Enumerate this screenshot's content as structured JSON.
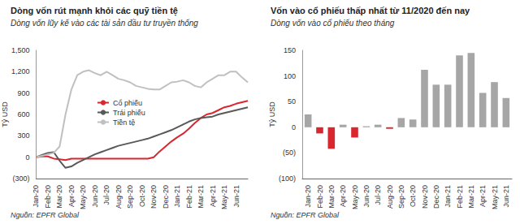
{
  "chart_data": [
    {
      "type": "line",
      "title": "Dòng vốn rút mạnh khỏi các quỹ tiền tệ",
      "subtitle": "Dòng vốn lũy kế vào các tài sản đầu tư truyền thống",
      "ylabel": "Tỷ USD",
      "source": "Nguồn: EPFR Global",
      "categories": [
        "Jan-20",
        null,
        "Feb-20",
        null,
        "Mar-20",
        null,
        "Apr-20",
        null,
        "May-20",
        null,
        "Jun-20",
        null,
        "Jul-20",
        null,
        "Aug-20",
        null,
        "Sep-20",
        null,
        "Oct-20",
        null,
        "Nov-20",
        null,
        "Dec-20",
        null,
        "Jan-21",
        null,
        "Feb-21",
        null,
        "Mar-21",
        null,
        "Apr-21",
        null,
        "May-21",
        null,
        "Jun-21",
        null,
        null
      ],
      "series": [
        {
          "name": "Cổ phiếu",
          "color": "#d9262f",
          "values": [
            0,
            10,
            10,
            -20,
            -30,
            -40,
            -20,
            -20,
            -20,
            -20,
            -20,
            -20,
            -20,
            -20,
            -20,
            -20,
            -20,
            -20,
            -20,
            -20,
            0,
            80,
            150,
            220,
            280,
            330,
            400,
            480,
            550,
            600,
            620,
            660,
            700,
            720,
            750,
            770,
            790
          ]
        },
        {
          "name": "Trái phiếu",
          "color": "#595959",
          "values": [
            0,
            30,
            60,
            70,
            -50,
            -150,
            -130,
            -80,
            -40,
            0,
            40,
            70,
            100,
            130,
            160,
            180,
            200,
            220,
            240,
            260,
            290,
            320,
            350,
            380,
            420,
            460,
            500,
            530,
            550,
            560,
            570,
            600,
            620,
            640,
            660,
            680,
            700
          ]
        },
        {
          "name": "Tiền tệ",
          "color": "#c0c0c0",
          "values": [
            0,
            20,
            40,
            60,
            150,
            600,
            950,
            1150,
            1200,
            1220,
            1180,
            1150,
            1200,
            1150,
            1100,
            1080,
            1050,
            1000,
            980,
            960,
            950,
            950,
            1000,
            1050,
            1060,
            1080,
            1050,
            1000,
            980,
            1050,
            1100,
            1150,
            1150,
            1200,
            1200,
            1120,
            1050
          ]
        }
      ],
      "ylim": [
        -300,
        1500
      ],
      "yticks": [
        {
          "value": -300,
          "label": "(300)"
        },
        0,
        300,
        600,
        900,
        {
          "value": 1200,
          "label": "1,200"
        },
        {
          "value": 1500,
          "label": "1,500"
        }
      ],
      "grid": false,
      "legend": "center"
    },
    {
      "type": "bar",
      "title": "Vốn vào cổ phiếu thấp nhất từ 11/2020 đến nay",
      "subtitle": "Dòng vốn vào cổ phiếu theo tháng",
      "ylabel": "Tỷ USD",
      "source": "Nguồn: EPFR Global",
      "categories": [
        "Jan-20",
        "Feb-20",
        "Mar-20",
        "Apr-20",
        "May-20",
        "Jun-20",
        "Jul-20",
        "Aug-20",
        "Sep-20",
        "Oct-20",
        "Nov-20",
        "Dec-20",
        "Jan-21",
        "Feb-21",
        "Mar-21",
        "Apr-21",
        "May-21",
        "Jun-21"
      ],
      "values": [
        25,
        -12,
        -42,
        5,
        -20,
        2,
        5,
        -3,
        18,
        15,
        112,
        83,
        83,
        140,
        145,
        67,
        88,
        57
      ],
      "colors": [
        "#a6a6a6",
        "#d9262f",
        "#d9262f",
        "#a6a6a6",
        "#d9262f",
        "#a6a6a6",
        "#a6a6a6",
        "#d9262f",
        "#a6a6a6",
        "#a6a6a6",
        "#a6a6a6",
        "#a6a6a6",
        "#a6a6a6",
        "#a6a6a6",
        "#a6a6a6",
        "#a6a6a6",
        "#a6a6a6",
        "#a6a6a6"
      ],
      "ylim": [
        -100,
        150
      ],
      "yticks": [
        {
          "value": -100,
          "label": "(100)"
        },
        {
          "value": -50,
          "label": "(50)"
        },
        0,
        50,
        100,
        150
      ],
      "grid": false
    }
  ]
}
